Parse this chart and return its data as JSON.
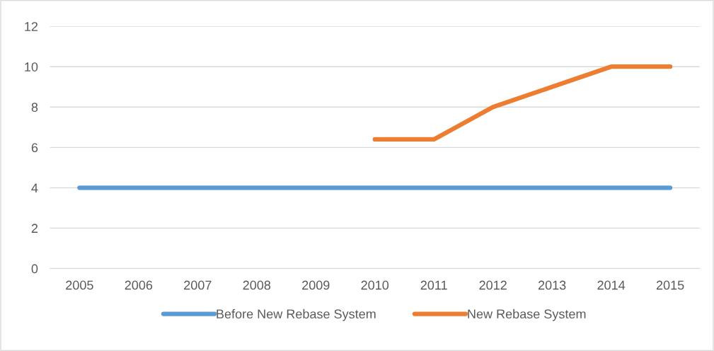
{
  "chart_data": {
    "type": "line",
    "categories": [
      "2005",
      "2006",
      "2007",
      "2008",
      "2009",
      "2010",
      "2011",
      "2012",
      "2013",
      "2014",
      "2015"
    ],
    "series": [
      {
        "name": "Before New Rebase System",
        "color": "#5b9bd5",
        "values": [
          4,
          4,
          4,
          4,
          4,
          4,
          4,
          4,
          4,
          4,
          4
        ]
      },
      {
        "name": "New Rebase System",
        "color": "#ed7d31",
        "values": [
          null,
          null,
          null,
          null,
          null,
          6.4,
          6.4,
          8,
          9,
          10,
          10
        ]
      }
    ],
    "ylim": [
      0,
      12
    ],
    "yticks": [
      0,
      2,
      4,
      6,
      8,
      10,
      12
    ],
    "grid": "y",
    "legend": "bottom",
    "marker": "none",
    "line_style": "solid"
  }
}
